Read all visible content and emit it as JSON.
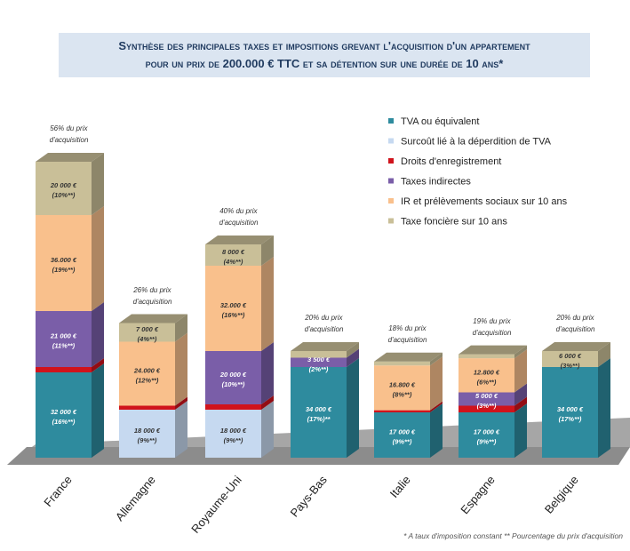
{
  "chart_data": {
    "type": "bar",
    "stacked": true,
    "title_line1": "Synthèse des principales taxes et impositions grevant l'acquisition d'un appartement",
    "title_line2": "pour un prix de 200.000 € TTC et sa détention sur une durée de 10 ans*",
    "unit": "k€",
    "categories": [
      "France",
      "Allemagne",
      "Royaume-Uni",
      "Pays-Bas",
      "Italie",
      "Espagne",
      "Belgique"
    ],
    "series": [
      {
        "name": "TVA ou équivalent",
        "color": "#2e8b9e",
        "values": [
          32,
          0,
          0,
          34,
          17,
          17,
          34
        ],
        "labels": [
          "32 000 €|(16%**)",
          "",
          "",
          "34 000 €|(17%)**",
          "17 000 €|(9%**)",
          "17 000 €|(9%**)",
          "34 000 €|(17%**)"
        ],
        "textColor": "#fff"
      },
      {
        "name": "Surcoût lié à la déperdition de TVA",
        "color": "#c6d9f0",
        "values": [
          0,
          18,
          18,
          0,
          0,
          0,
          0
        ],
        "labels": [
          "",
          "18 000 €|(9%**)",
          "18 000 €|(9%**)",
          "",
          "",
          "",
          ""
        ],
        "textColor": "#333"
      },
      {
        "name": "Droits d'enregistrement",
        "color": "#d0131c",
        "values": [
          2,
          1.5,
          2,
          0,
          0.8,
          2.5,
          0
        ],
        "labels": [
          "",
          "",
          "",
          "",
          "",
          "",
          ""
        ],
        "textColor": "#fff"
      },
      {
        "name": "Taxes indirectes",
        "color": "#7a5ea8",
        "values": [
          21,
          0,
          20,
          3.5,
          0,
          5,
          0
        ],
        "labels": [
          "21 000 €|(11%**)",
          "",
          "20 000 €|(10%**)",
          "3 500 €|(2%**)",
          "",
          "5 000 €|(3%**)",
          ""
        ],
        "textColor": "#fff"
      },
      {
        "name": "IR et prélèvements sociaux sur 10 ans",
        "color": "#f9c08c",
        "values": [
          36,
          24,
          32,
          0,
          16.8,
          12.8,
          0
        ],
        "labels": [
          "36.000 €|(19%**)",
          "24.000 €|(12%**)",
          "32.000 €|(16%**)",
          "",
          "16.800 €|(8%**)",
          "12.800 €|(6%**)",
          ""
        ],
        "textColor": "#333"
      },
      {
        "name": "Taxe foncière sur 10 ans",
        "color": "#c9bf98",
        "values": [
          20,
          7,
          8,
          2.5,
          1.5,
          1.5,
          6
        ],
        "labels": [
          "20 000 €|(10%**)",
          "7 000 €|(4%**)",
          "8 000 €|(4%**)",
          "",
          "",
          "",
          "6 000 €|(3%**)"
        ],
        "textColor": "#333"
      }
    ],
    "annotations": [
      "56% du prix|d'acquisition",
      "26% du prix|d'acquisition",
      "40% du prix|d'acquisition",
      "20% du prix|d'acquisition",
      "18% du prix|d'acquisition",
      "19% du prix|d'acquisition",
      "20% du prix|d'acquisition"
    ],
    "legend_position": "top-right",
    "footnote": "* A taux d'imposition constant ** Pourcentage du prix d'acquisition"
  }
}
